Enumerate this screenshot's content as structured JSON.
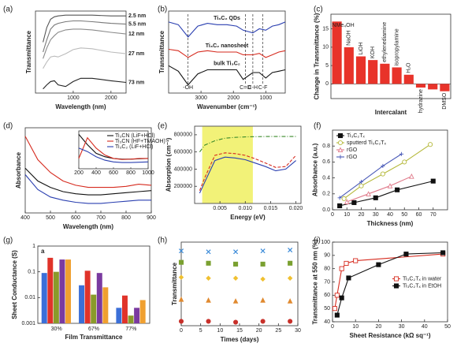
{
  "chart_data": [
    {
      "type": "line",
      "label": "(a)",
      "xlabel": "Wavelength (nm)",
      "ylabel": "Transmittance",
      "legend": "end",
      "xlim": [
        0,
        2400
      ],
      "ylim": [
        0,
        1
      ],
      "xticks": [
        1000,
        2000
      ],
      "x": [
        200,
        300,
        400,
        500,
        600,
        800,
        1000,
        1200,
        1500,
        2000,
        2400
      ],
      "series": [
        {
          "name": "2.5 nm",
          "color": "#555555",
          "values": [
            0.62,
            0.8,
            0.9,
            0.93,
            0.94,
            0.95,
            0.95,
            0.95,
            0.95,
            0.94,
            0.94
          ]
        },
        {
          "name": "5.5 nm",
          "color": "#777777",
          "values": [
            0.5,
            0.65,
            0.78,
            0.83,
            0.85,
            0.87,
            0.88,
            0.88,
            0.87,
            0.85,
            0.84
          ]
        },
        {
          "name": "12 nm",
          "color": "#8a8a8a",
          "values": [
            0.42,
            0.55,
            0.65,
            0.7,
            0.74,
            0.77,
            0.78,
            0.78,
            0.77,
            0.74,
            0.72
          ]
        },
        {
          "name": "27 nm",
          "color": "#bbbbbb",
          "values": [
            0.3,
            0.38,
            0.44,
            0.45,
            0.44,
            0.48,
            0.53,
            0.55,
            0.54,
            0.5,
            0.48
          ]
        },
        {
          "name": "73 nm",
          "color": "#222222",
          "values": [
            0.05,
            0.1,
            0.14,
            0.15,
            0.1,
            0.08,
            0.14,
            0.18,
            0.18,
            0.15,
            0.13
          ]
        }
      ]
    },
    {
      "type": "line",
      "label": "(b)",
      "xlabel": "Wavenumber (cm⁻¹)",
      "ylabel": "Transmittance",
      "legend": "inline",
      "xlim": [
        4000,
        400
      ],
      "ylim": [
        0,
        3
      ],
      "xticks": [
        3000,
        2000,
        1000
      ],
      "vlines": [
        3400,
        1630,
        1400,
        1090
      ],
      "annotations": [
        "-OH",
        "C=O",
        "C-H",
        "C-F"
      ],
      "x": [
        4000,
        3700,
        3400,
        3100,
        2800,
        2500,
        2200,
        1900,
        1700,
        1400,
        1200,
        1000,
        800,
        600,
        400
      ],
      "series": [
        {
          "name": "Ti₃C₂ QDs",
          "color": "#2a3fb0",
          "values": [
            2.6,
            2.5,
            2.05,
            2.45,
            2.55,
            2.5,
            2.5,
            2.45,
            2.3,
            2.2,
            2.35,
            2.3,
            2.45,
            2.5,
            2.6
          ]
        },
        {
          "name": "Ti₃C₂ nanosheet",
          "color": "#d62a1e",
          "values": [
            1.6,
            1.55,
            1.3,
            1.5,
            1.55,
            1.5,
            1.5,
            1.5,
            1.4,
            1.4,
            1.45,
            1.3,
            1.4,
            1.5,
            1.55
          ]
        },
        {
          "name": "bulk Ti₃C₂",
          "color": "#111111",
          "values": [
            1.0,
            0.8,
            0.3,
            0.7,
            0.85,
            0.85,
            0.85,
            0.85,
            0.5,
            0.75,
            0.75,
            0.55,
            0.75,
            0.8,
            0.85
          ]
        }
      ]
    },
    {
      "type": "bar",
      "label": "(c)",
      "xlabel": "Intercalant",
      "ylabel": "Change in Transmittance (%)",
      "ylim": [
        -4,
        19
      ],
      "yticks": [
        0,
        5,
        10,
        15
      ],
      "color": "#e8332a",
      "categories": [
        "NMe₄OH",
        "NaOH",
        "LiOH",
        "KOH",
        "ethylenediamine",
        "isopropylamine",
        "H₂O",
        "hydrazine",
        null,
        "DMSO"
      ],
      "values": [
        17,
        10,
        7.5,
        6.5,
        5.5,
        4.5,
        2.5,
        -1,
        -1.5,
        -2
      ]
    },
    {
      "type": "line",
      "label": "(d)",
      "xlabel": "Wavelength (nm)",
      "ylabel": "Absorbance",
      "legend": "inset",
      "xlim": [
        400,
        900
      ],
      "ylim": [
        0,
        0.8
      ],
      "xticks": [
        400,
        500,
        600,
        700,
        800,
        900
      ],
      "x": [
        400,
        450,
        500,
        550,
        600,
        650,
        700,
        750,
        800,
        850,
        900
      ],
      "series": [
        {
          "name": "Ti₃CN (LiF+HCl)",
          "color": "#111111",
          "values": [
            0.42,
            0.3,
            0.24,
            0.2,
            0.18,
            0.17,
            0.17,
            0.18,
            0.19,
            0.2,
            0.21
          ]
        },
        {
          "name": "Ti₃CN (HF+TMAOH)",
          "color": "#d62a1e",
          "values": [
            0.72,
            0.5,
            0.38,
            0.3,
            0.26,
            0.24,
            0.24,
            0.24,
            0.25,
            0.27,
            0.26
          ]
        },
        {
          "name": "Ti₃C₂ (LiF+HCl)",
          "color": "#2a3fb0",
          "values": [
            0.36,
            0.22,
            0.15,
            0.12,
            0.1,
            0.09,
            0.09,
            0.1,
            0.11,
            0.12,
            0.12
          ]
        }
      ],
      "inset": {
        "xlim": [
          200,
          1000
        ],
        "ylim": [
          0,
          1.1
        ],
        "xticks": [
          200,
          400,
          600,
          800,
          1000
        ],
        "x": [
          200,
          300,
          400,
          500,
          600,
          700,
          800,
          900,
          1000
        ],
        "series": [
          {
            "color": "#111111",
            "values": [
              1.0,
              0.7,
              0.45,
              0.35,
              0.3,
              0.28,
              0.28,
              0.29,
              0.3
            ]
          },
          {
            "color": "#d62a1e",
            "values": [
              0.3,
              0.9,
              0.6,
              0.4,
              0.3,
              0.27,
              0.28,
              0.3,
              0.3
            ]
          },
          {
            "color": "#2a3fb0",
            "values": [
              0.6,
              0.5,
              0.35,
              0.25,
              0.2,
              0.18,
              0.18,
              0.19,
              0.2
            ]
          }
        ]
      }
    },
    {
      "type": "line",
      "label": "(e)",
      "xlabel": "Energy (eV)",
      "ylabel": "Absorption (cm⁻¹)",
      "xlim": [
        0,
        0.021
      ],
      "ylim": [
        0,
        900000
      ],
      "xticks": [
        0.005,
        {
          "value": 0.01,
          "label": "0.010"
        },
        0.015,
        {
          "value": 0.02,
          "label": "0.020"
        }
      ],
      "yticks": [
        200000,
        400000,
        600000,
        800000
      ],
      "band": [
        0.0015,
        0.0115
      ],
      "band_color": "#f0f060",
      "x": [
        0.001,
        0.002,
        0.004,
        0.006,
        0.008,
        0.01,
        0.012,
        0.014,
        0.016,
        0.018,
        0.02
      ],
      "series": [
        {
          "color": "#3a8a2a",
          "dash": "dashdot",
          "values": [
            600000,
            680000,
            730000,
            760000,
            770000,
            775000,
            778000,
            780000,
            780000,
            780000,
            780000
          ]
        },
        {
          "color": "#d62a1e",
          "dash": "dashed",
          "values": [
            150000,
            300000,
            560000,
            590000,
            580000,
            560000,
            520000,
            470000,
            420000,
            430000,
            560000
          ]
        },
        {
          "color": "#2a3fb0",
          "values": [
            120000,
            250000,
            500000,
            540000,
            530000,
            510000,
            470000,
            430000,
            380000,
            400000,
            500000
          ]
        }
      ]
    },
    {
      "type": "line",
      "label": "(f)",
      "xlabel": "Thickness (nm)",
      "ylabel": "Absorbance (a.u.)",
      "legend": "upper left",
      "xlim": [
        0,
        80
      ],
      "ylim": [
        0,
        1
      ],
      "xticks": [
        0,
        10,
        20,
        30,
        40,
        50,
        60,
        70
      ],
      "yticks": [
        {
          "value": 0,
          "label": "0.0"
        },
        0.2,
        0.4,
        0.6,
        0.8
      ],
      "series": [
        {
          "name": "Ti₃C₂Tₓ",
          "color": "#111111",
          "marker": "square",
          "filled": true,
          "x": [
            5,
            15,
            30,
            45,
            70
          ],
          "values": [
            0.05,
            0.09,
            0.15,
            0.25,
            0.36
          ]
        },
        {
          "name": "sputterd Ti₃C₂Tₓ",
          "color": "#b5b83a",
          "marker": "circle",
          "x": [
            8,
            20,
            35,
            50,
            68
          ],
          "values": [
            0.14,
            0.3,
            0.45,
            0.6,
            0.82
          ]
        },
        {
          "name": "rGO",
          "color": "#e07a8a",
          "marker": "triangle",
          "x": [
            10,
            25,
            40,
            55
          ],
          "values": [
            0.1,
            0.2,
            0.3,
            0.42
          ]
        },
        {
          "name": "rGO",
          "color": "#4a5ab8",
          "marker": "cross",
          "x": [
            5,
            20,
            35,
            48
          ],
          "values": [
            0.15,
            0.35,
            0.55,
            0.7
          ]
        }
      ]
    },
    {
      "type": "bar",
      "label": "(g)",
      "xlabel": "Film Transmittance",
      "ylabel": "Sheet Conductance (S)",
      "annotation": "a",
      "log": true,
      "ylim": [
        0.001,
        1
      ],
      "yticks": [
        0.001,
        0.01,
        0.1,
        1
      ],
      "categories": [
        "30%",
        "67%",
        "77%"
      ],
      "series": [
        {
          "color": "#3b6fd8",
          "values": [
            0.09,
            0.03,
            0.004
          ]
        },
        {
          "color": "#e0332a",
          "values": [
            0.35,
            0.11,
            0.012
          ]
        },
        {
          "color": "#8a9a2a",
          "values": [
            0.1,
            0.013,
            0.002
          ]
        },
        {
          "color": "#7a3aa0",
          "values": [
            0.3,
            0.09,
            0.004
          ]
        },
        {
          "color": "#f0a030",
          "values": [
            0.3,
            0.025,
            0.008
          ]
        }
      ]
    },
    {
      "type": "scatter",
      "label": "(h)",
      "xlabel": "Times (days)",
      "ylabel": "Transmittance",
      "xlim": [
        0,
        30
      ],
      "ylim": [
        0,
        95
      ],
      "xticks": [
        0,
        5,
        10,
        15,
        20,
        25,
        30
      ],
      "x": [
        0,
        7,
        14,
        21,
        28
      ],
      "series": [
        {
          "color": "#3a8ad8",
          "marker": "x",
          "values": [
            85,
            84,
            84,
            85,
            86
          ]
        },
        {
          "color": "#7aa030",
          "marker": "square",
          "filled": true,
          "values": [
            72,
            71,
            70,
            70,
            71
          ]
        },
        {
          "color": "#f0c030",
          "marker": "diamond",
          "filled": true,
          "values": [
            55,
            54,
            54,
            53,
            54
          ]
        },
        {
          "color": "#e08a30",
          "marker": "triangle",
          "filled": true,
          "values": [
            30,
            29,
            28,
            29,
            28
          ]
        },
        {
          "color": "#c8302a",
          "marker": "circle",
          "filled": true,
          "values": [
            5,
            5,
            4,
            5,
            5
          ]
        }
      ]
    },
    {
      "type": "line",
      "label": "(i)",
      "xlabel": "Sheet Resistance (kΩ sq⁻¹)",
      "ylabel": "Transmittance at 550 nm (%)",
      "legend": "center right",
      "xlim": [
        0,
        50
      ],
      "ylim": [
        40,
        100
      ],
      "xticks": [
        0,
        10,
        20,
        30,
        40,
        50
      ],
      "yticks": [
        40,
        50,
        60,
        70,
        80,
        90,
        100
      ],
      "series": [
        {
          "name": "Ti₃C₂Tₓ in water",
          "color": "#d62a1e",
          "marker": "square",
          "x": [
            1,
            2,
            4,
            6,
            10,
            48
          ],
          "values": [
            50,
            60,
            80,
            84,
            86,
            91
          ]
        },
        {
          "name": "Ti₃C₂Tₓ in EtOH",
          "color": "#111111",
          "marker": "square",
          "filled": true,
          "x": [
            2,
            4,
            7,
            20,
            32,
            48
          ],
          "values": [
            45,
            58,
            73,
            83,
            91,
            92
          ]
        }
      ]
    }
  ]
}
